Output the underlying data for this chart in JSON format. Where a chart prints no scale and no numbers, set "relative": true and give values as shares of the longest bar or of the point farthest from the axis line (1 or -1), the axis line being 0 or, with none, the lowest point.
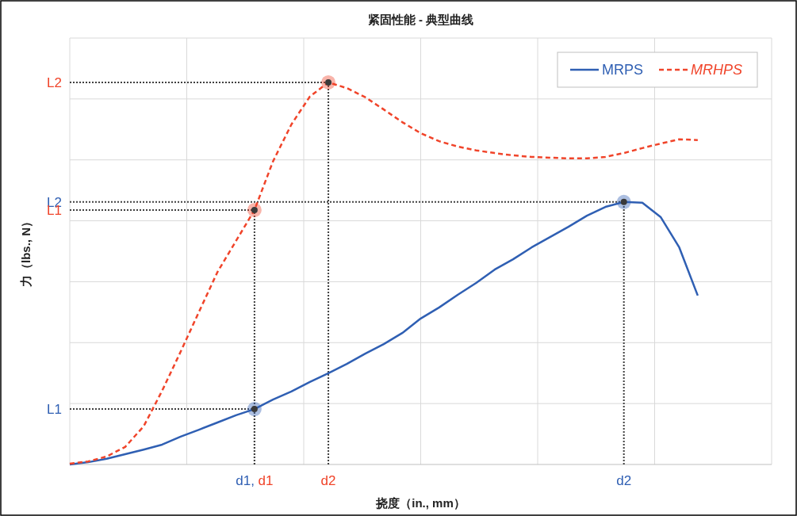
{
  "chart_data": {
    "type": "line",
    "title": "紧固性能 - 典型曲线",
    "xlabel": "挠度（in., mm）",
    "ylabel": "力（lbs., N）",
    "relative": true,
    "grid": true,
    "legend": "top right",
    "categories": [
      null,
      null,
      null,
      null,
      null,
      null,
      null,
      null,
      null,
      null,
      "d1, d1",
      null,
      null,
      null,
      "d2",
      null,
      null,
      null,
      null,
      null,
      null,
      null,
      null,
      null,
      null,
      null,
      null,
      null,
      null,
      null,
      "d2",
      null,
      null,
      null,
      null,
      null,
      null,
      null,
      null
    ],
    "series": [
      {
        "name": "MRPS",
        "color": "#2f5fb3",
        "line_style": "solid",
        "values": [
          0,
          0.006,
          0.015,
          0.027,
          0.039,
          0.052,
          0.073,
          0.091,
          0.11,
          0.129,
          0.145,
          0.17,
          0.191,
          0.216,
          0.239,
          0.263,
          0.29,
          0.315,
          0.344,
          0.382,
          0.411,
          0.444,
          0.475,
          0.51,
          0.537,
          0.568,
          0.595,
          0.622,
          0.651,
          0.674,
          0.687,
          0.685,
          0.647,
          0.568,
          0.442,
          null,
          null,
          null,
          null
        ]
      },
      {
        "name": "MRHPS",
        "color": "#f0442a",
        "line_style": "dashed",
        "values": [
          0.002,
          0.008,
          0.021,
          0.046,
          0.1,
          0.193,
          0.295,
          0.4,
          0.504,
          0.585,
          0.666,
          0.793,
          0.89,
          0.963,
          1.0,
          0.985,
          0.961,
          0.929,
          0.896,
          0.867,
          0.846,
          0.832,
          0.822,
          0.815,
          0.809,
          0.805,
          0.803,
          0.801,
          0.801,
          0.805,
          0.815,
          0.828,
          0.84,
          0.851,
          0.849,
          null,
          null,
          null,
          null
        ]
      },
      {
        "type": "scatter",
        "color": "#2f5fb3",
        "values": [
          null,
          null,
          null,
          null,
          null,
          null,
          null,
          null,
          null,
          null,
          0.145,
          null,
          null,
          null,
          null,
          null,
          null,
          null,
          null,
          null,
          null,
          null,
          null,
          null,
          null,
          null,
          null,
          null,
          null,
          null,
          0.687,
          null,
          null,
          null,
          null,
          null,
          null,
          null,
          null
        ]
      },
      {
        "type": "scatter",
        "color": "#f0442a",
        "values": [
          null,
          null,
          null,
          null,
          null,
          null,
          null,
          null,
          null,
          null,
          0.666,
          null,
          null,
          null,
          1.0,
          null,
          null,
          null,
          null,
          null,
          null,
          null,
          null,
          null,
          null,
          null,
          null,
          null,
          null,
          null,
          null,
          null,
          null,
          null,
          null,
          null,
          null,
          null,
          null
        ]
      }
    ],
    "ref_lines": [
      {
        "axis": "y",
        "value": 1.0,
        "label": "L2",
        "color": "#404040",
        "line_style": "dotted"
      },
      {
        "axis": "y",
        "value": 0.687,
        "label": "L2",
        "color": "#404040",
        "line_style": "dotted"
      },
      {
        "axis": "y",
        "value": 0.666,
        "label": "L1",
        "color": "#404040",
        "line_style": "dotted"
      },
      {
        "axis": "y",
        "value": 0.145,
        "label": "L1",
        "color": "#404040",
        "line_style": "dotted"
      }
    ]
  }
}
